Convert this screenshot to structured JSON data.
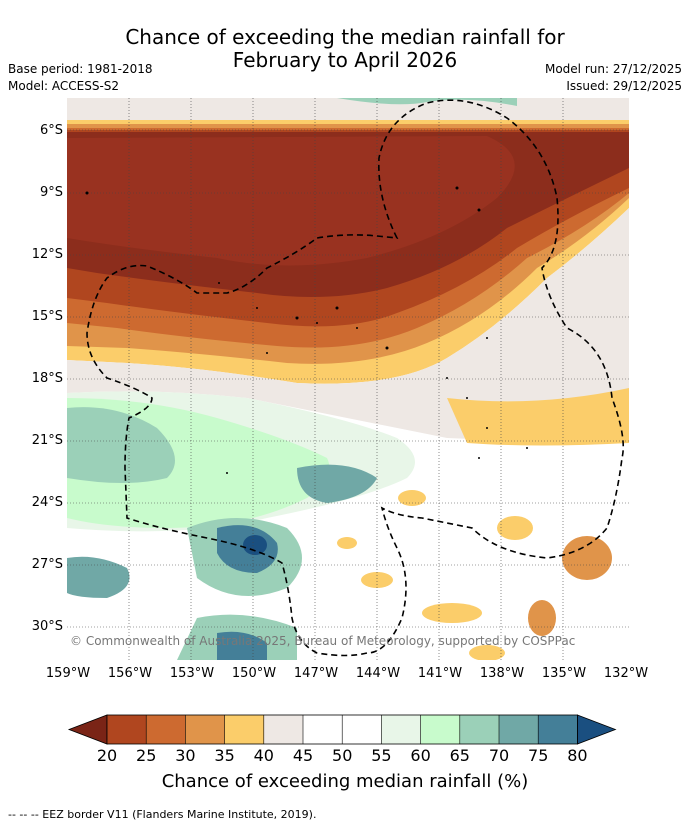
{
  "title_line1": "Chance of exceeding the median rainfall for",
  "title_line2": "February to April 2026",
  "base_period": "Base period: 1981-2018",
  "model": "Model: ACCESS-S2",
  "model_run": "Model run: 27/12/2025",
  "issued": "Issued: 29/12/2025",
  "copyright": "© Commonwealth of Australia 2025, Bureau of Meteorology, supported by COSPPac",
  "lat_ticks": [
    "6°S",
    "9°S",
    "12°S",
    "15°S",
    "18°S",
    "21°S",
    "24°S",
    "27°S",
    "30°S"
  ],
  "lon_ticks": [
    "159°W",
    "156°W",
    "153°W",
    "150°W",
    "147°W",
    "144°W",
    "141°W",
    "138°W",
    "135°W",
    "132°W"
  ],
  "colorbar": {
    "labels": [
      "20",
      "25",
      "30",
      "35",
      "40",
      "45",
      "50",
      "55",
      "60",
      "65",
      "70",
      "75",
      "80"
    ],
    "colors": [
      "#8c2d1c",
      "#b0461f",
      "#cd6a30",
      "#e0944a",
      "#fbcd6a",
      "#eee8e4",
      "#ffffff",
      "#ffffff",
      "#e8f6e8",
      "#c8fbcc",
      "#9bd0b8",
      "#70a8a6",
      "#447f98"
    ],
    "under_color": "#7a2416",
    "over_color": "#1a4f80",
    "title": "Chance of exceeding median rainfall (%)"
  },
  "footnote": "--  --  -- EEZ border V11 (Flanders Marine Institute, 2019)."
}
